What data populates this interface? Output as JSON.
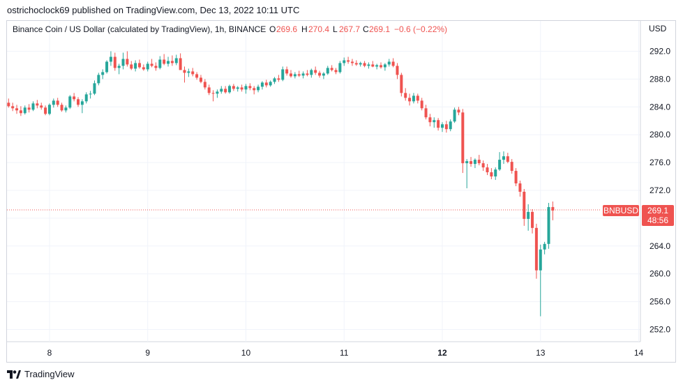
{
  "byline": "ostrichoclock69 published on TradingView.com, Dec 13, 2022 10:11 UTC",
  "brand": {
    "name": "TradingView",
    "logo_icon": "tradingview-logo-icon"
  },
  "colors": {
    "up": "#26a69a",
    "down": "#ef5350",
    "grid": "#f0f3fa",
    "text": "#131722",
    "axis_text": "#131722"
  },
  "chart_data": {
    "type": "candlestick",
    "title": "Binance Coin / US Dollar (calculated by TradingView), 1h, BINANCE",
    "ohlc_legend": {
      "O": "269.6",
      "H": "270.4",
      "L": "267.7",
      "C": "269.1",
      "change": "−0.6 (−0.22%)"
    },
    "currency": "USD",
    "symbol_tag": "BNBUSD",
    "last_price": "269.1",
    "countdown": "48:56",
    "ylim": [
      250.0,
      295.0
    ],
    "y_ticks": [
      292.0,
      288.0,
      284.0,
      280.0,
      276.0,
      272.0,
      268.0,
      264.0,
      260.0,
      256.0,
      252.0
    ],
    "y_tick_labels": [
      "292.0",
      "288.0",
      "284.0",
      "280.0",
      "276.0",
      "272.0",
      "268.0",
      "264.0",
      "260.0",
      "256.0",
      "252.0"
    ],
    "x_ticks": [
      {
        "label": "8",
        "i": 10
      },
      {
        "label": "9",
        "i": 34
      },
      {
        "label": "10",
        "i": 58
      },
      {
        "label": "11",
        "i": 82
      },
      {
        "label": "12",
        "i": 106,
        "bold": true
      },
      {
        "label": "13",
        "i": 130
      },
      {
        "label": "14",
        "i": 154
      }
    ],
    "candles": [
      [
        284.6,
        285.2,
        283.9,
        284.1
      ],
      [
        284.1,
        284.6,
        283.4,
        283.8
      ],
      [
        283.8,
        284.3,
        283.0,
        283.5
      ],
      [
        283.5,
        284.1,
        282.7,
        283.1
      ],
      [
        283.1,
        284.2,
        282.9,
        283.9
      ],
      [
        283.9,
        284.4,
        283.2,
        283.6
      ],
      [
        283.6,
        284.8,
        283.4,
        284.5
      ],
      [
        284.5,
        285.0,
        283.8,
        284.2
      ],
      [
        284.2,
        284.6,
        283.6,
        283.9
      ],
      [
        283.9,
        284.2,
        282.8,
        283.0
      ],
      [
        283.0,
        284.5,
        282.8,
        284.3
      ],
      [
        284.3,
        285.2,
        283.9,
        284.9
      ],
      [
        284.9,
        285.3,
        284.0,
        284.3
      ],
      [
        284.3,
        284.6,
        283.3,
        283.5
      ],
      [
        283.5,
        284.2,
        283.2,
        283.9
      ],
      [
        283.9,
        285.7,
        283.7,
        285.5
      ],
      [
        285.5,
        286.0,
        284.8,
        285.1
      ],
      [
        285.1,
        285.4,
        284.0,
        284.3
      ],
      [
        284.3,
        285.1,
        283.1,
        284.8
      ],
      [
        284.8,
        286.1,
        284.5,
        285.8
      ],
      [
        285.8,
        286.3,
        285.2,
        285.9
      ],
      [
        285.9,
        287.8,
        285.7,
        287.4
      ],
      [
        287.4,
        288.9,
        287.1,
        288.6
      ],
      [
        288.6,
        289.4,
        288.0,
        289.0
      ],
      [
        289.0,
        290.7,
        288.8,
        290.5
      ],
      [
        290.5,
        292.0,
        289.9,
        291.2
      ],
      [
        291.2,
        291.8,
        289.2,
        289.6
      ],
      [
        289.6,
        290.2,
        288.7,
        289.9
      ],
      [
        289.9,
        291.8,
        289.4,
        290.9
      ],
      [
        290.9,
        292.0,
        289.8,
        290.1
      ],
      [
        290.1,
        290.6,
        289.3,
        289.5
      ],
      [
        289.5,
        290.7,
        289.1,
        290.3
      ],
      [
        290.3,
        290.8,
        289.5,
        289.7
      ],
      [
        289.7,
        290.1,
        289.2,
        289.4
      ],
      [
        289.4,
        290.5,
        289.1,
        290.2
      ],
      [
        290.2,
        290.9,
        289.7,
        289.9
      ],
      [
        289.9,
        290.4,
        289.2,
        289.6
      ],
      [
        289.6,
        291.3,
        289.4,
        290.8
      ],
      [
        290.8,
        291.6,
        290.0,
        290.2
      ],
      [
        290.2,
        291.2,
        289.8,
        290.6
      ],
      [
        290.6,
        291.4,
        289.9,
        290.3
      ],
      [
        290.3,
        291.5,
        290.0,
        291.0
      ],
      [
        291.0,
        291.7,
        289.5,
        289.3
      ],
      [
        289.3,
        289.8,
        287.5,
        288.9
      ],
      [
        288.9,
        289.5,
        288.3,
        289.1
      ],
      [
        289.1,
        289.6,
        288.4,
        288.7
      ],
      [
        288.7,
        289.0,
        287.9,
        288.2
      ],
      [
        288.2,
        288.6,
        287.4,
        287.6
      ],
      [
        287.6,
        288.0,
        286.5,
        286.8
      ],
      [
        286.8,
        287.2,
        285.7,
        286.0
      ],
      [
        286.0,
        286.4,
        284.8,
        285.9
      ],
      [
        285.9,
        286.5,
        285.3,
        286.2
      ],
      [
        286.2,
        287.0,
        285.9,
        286.6
      ],
      [
        286.6,
        287.0,
        285.9,
        286.1
      ],
      [
        286.1,
        287.2,
        285.9,
        287.0
      ],
      [
        287.0,
        287.3,
        286.3,
        286.6
      ],
      [
        286.6,
        287.0,
        286.2,
        286.8
      ],
      [
        286.8,
        287.2,
        286.2,
        286.5
      ],
      [
        286.5,
        287.3,
        285.9,
        287.0
      ],
      [
        287.0,
        287.4,
        286.4,
        286.7
      ],
      [
        286.7,
        287.0,
        285.8,
        286.4
      ],
      [
        286.4,
        287.2,
        286.1,
        286.9
      ],
      [
        286.9,
        287.7,
        286.5,
        287.5
      ],
      [
        287.5,
        287.9,
        286.8,
        287.1
      ],
      [
        287.1,
        287.8,
        286.9,
        287.6
      ],
      [
        287.6,
        288.3,
        287.3,
        288.1
      ],
      [
        288.1,
        288.6,
        287.6,
        287.9
      ],
      [
        287.9,
        289.8,
        287.7,
        289.4
      ],
      [
        289.4,
        289.8,
        288.5,
        288.8
      ],
      [
        288.8,
        289.3,
        288.2,
        288.4
      ],
      [
        288.4,
        289.0,
        288.1,
        288.7
      ],
      [
        288.7,
        289.2,
        288.3,
        288.5
      ],
      [
        288.5,
        289.1,
        288.1,
        288.8
      ],
      [
        288.8,
        289.3,
        288.4,
        288.6
      ],
      [
        288.6,
        289.5,
        288.2,
        289.3
      ],
      [
        289.3,
        289.8,
        288.6,
        288.9
      ],
      [
        288.9,
        289.2,
        288.2,
        288.5
      ],
      [
        288.5,
        289.0,
        288.0,
        288.8
      ],
      [
        288.8,
        289.9,
        288.6,
        289.6
      ],
      [
        289.6,
        290.0,
        289.1,
        289.3
      ],
      [
        289.3,
        289.6,
        288.7,
        289.0
      ],
      [
        289.0,
        290.6,
        288.8,
        290.3
      ],
      [
        290.3,
        291.1,
        289.9,
        290.7
      ],
      [
        290.7,
        291.2,
        290.2,
        290.5
      ],
      [
        290.5,
        290.9,
        289.9,
        290.3
      ],
      [
        290.3,
        290.7,
        289.9,
        290.1
      ],
      [
        290.1,
        290.5,
        289.8,
        290.3
      ],
      [
        290.3,
        290.6,
        289.7,
        289.9
      ],
      [
        289.9,
        290.4,
        289.5,
        290.1
      ],
      [
        290.1,
        290.6,
        289.7,
        289.8
      ],
      [
        289.8,
        290.2,
        289.4,
        290.0
      ],
      [
        290.0,
        290.4,
        289.5,
        289.7
      ],
      [
        289.7,
        290.3,
        289.2,
        290.1
      ],
      [
        290.1,
        290.9,
        289.8,
        290.5
      ],
      [
        290.5,
        291.0,
        289.7,
        289.9
      ],
      [
        289.9,
        290.3,
        288.0,
        288.6
      ],
      [
        288.6,
        288.9,
        285.5,
        286.0
      ],
      [
        286.0,
        286.7,
        284.9,
        285.3
      ],
      [
        285.3,
        285.9,
        284.2,
        284.8
      ],
      [
        284.8,
        286.0,
        284.5,
        285.6
      ],
      [
        285.6,
        285.9,
        284.5,
        284.9
      ],
      [
        284.9,
        285.3,
        283.5,
        283.8
      ],
      [
        283.8,
        284.3,
        282.2,
        282.5
      ],
      [
        282.5,
        283.0,
        281.2,
        281.8
      ],
      [
        281.8,
        282.5,
        281.0,
        282.1
      ],
      [
        282.1,
        282.4,
        280.6,
        281.0
      ],
      [
        281.0,
        281.8,
        280.4,
        281.5
      ],
      [
        281.5,
        282.0,
        280.3,
        280.8
      ],
      [
        280.8,
        282.2,
        280.5,
        281.9
      ],
      [
        281.9,
        283.9,
        281.7,
        283.6
      ],
      [
        283.6,
        284.0,
        282.8,
        283.2
      ],
      [
        283.2,
        283.7,
        274.5,
        275.9
      ],
      [
        275.9,
        276.5,
        272.3,
        276.2
      ],
      [
        276.2,
        276.8,
        275.4,
        275.8
      ],
      [
        275.8,
        276.6,
        275.2,
        276.4
      ],
      [
        276.4,
        277.1,
        275.6,
        275.9
      ],
      [
        275.9,
        276.3,
        274.8,
        275.3
      ],
      [
        275.3,
        275.8,
        274.2,
        274.6
      ],
      [
        274.6,
        275.2,
        273.6,
        274.0
      ],
      [
        274.0,
        275.3,
        273.5,
        275.0
      ],
      [
        275.0,
        277.5,
        274.8,
        276.4
      ],
      [
        276.4,
        277.6,
        275.8,
        276.9
      ],
      [
        276.9,
        277.4,
        275.9,
        276.1
      ],
      [
        276.1,
        276.5,
        274.4,
        274.8
      ],
      [
        274.8,
        275.2,
        272.6,
        273.0
      ],
      [
        273.0,
        273.4,
        271.1,
        271.8
      ],
      [
        271.8,
        272.2,
        266.9,
        267.9
      ],
      [
        267.9,
        270.0,
        266.2,
        268.9
      ],
      [
        268.9,
        269.3,
        265.8,
        266.6
      ],
      [
        266.6,
        267.2,
        259.3,
        260.5
      ],
      [
        260.5,
        264.2,
        253.9,
        263.5
      ],
      [
        263.5,
        264.6,
        262.8,
        264.3
      ],
      [
        264.3,
        270.2,
        263.6,
        269.6
      ],
      [
        269.6,
        270.4,
        267.7,
        269.1
      ]
    ]
  }
}
